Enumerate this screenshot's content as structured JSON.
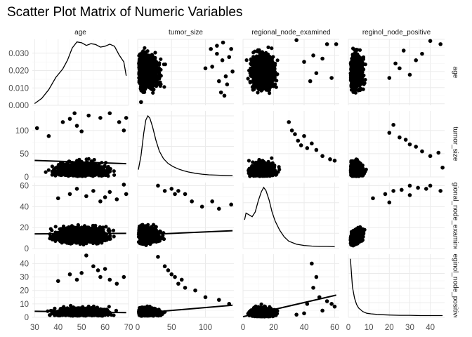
{
  "chart_data": {
    "type": "scatter_matrix",
    "title": "Scatter Plot Matrix of Numeric Variables",
    "variables": [
      "age",
      "tumor_size",
      "regional_node_examined",
      "reginol_node_positive"
    ],
    "right_strip_labels": [
      "age",
      "tumor_size",
      "regional_node_examined",
      "reginol_node_positive"
    ],
    "ranges": {
      "age": [
        29,
        70
      ],
      "tumor_size": [
        0,
        142
      ],
      "regional_node_examined": [
        0,
        63
      ],
      "reginol_node_positive": [
        0,
        47
      ]
    },
    "density_ylim": [
      0,
      0.038
    ],
    "ticks": {
      "age": [
        30,
        40,
        50,
        60,
        70
      ],
      "tumor_size": [
        0,
        50,
        100
      ],
      "regional_node_examined": [
        0,
        20,
        40,
        60
      ],
      "reginol_node_positive": [
        0,
        10,
        20,
        30,
        40
      ],
      "density": [
        0.0,
        0.01,
        0.02,
        0.03
      ]
    },
    "tick_labels": {
      "age": [
        "30",
        "40",
        "50",
        "60",
        "70"
      ],
      "tumor_size": [
        "0",
        "50",
        "100"
      ],
      "regional_node_examined": [
        "0",
        "20",
        "40",
        "60"
      ],
      "reginol_node_positive": [
        "0",
        "10",
        "20",
        "30",
        "40"
      ],
      "density": [
        "0.000",
        "0.010",
        "0.020",
        "0.030"
      ]
    },
    "densities": {
      "age": [
        [
          30,
          0.001
        ],
        [
          33,
          0.004
        ],
        [
          36,
          0.009
        ],
        [
          39,
          0.016
        ],
        [
          42,
          0.021
        ],
        [
          44,
          0.026
        ],
        [
          46,
          0.033
        ],
        [
          48,
          0.0365
        ],
        [
          50,
          0.036
        ],
        [
          52,
          0.0345
        ],
        [
          54,
          0.0355
        ],
        [
          56,
          0.035
        ],
        [
          58,
          0.0335
        ],
        [
          60,
          0.034
        ],
        [
          62,
          0.0352
        ],
        [
          64,
          0.034
        ],
        [
          66,
          0.029
        ],
        [
          68,
          0.025
        ],
        [
          69,
          0.017
        ]
      ],
      "tumor_size": [
        [
          1,
          0.12
        ],
        [
          5,
          0.35
        ],
        [
          9,
          0.72
        ],
        [
          12,
          0.93
        ],
        [
          15,
          1.0
        ],
        [
          18,
          0.96
        ],
        [
          22,
          0.82
        ],
        [
          27,
          0.6
        ],
        [
          32,
          0.42
        ],
        [
          38,
          0.3
        ],
        [
          45,
          0.22
        ],
        [
          52,
          0.17
        ],
        [
          60,
          0.13
        ],
        [
          68,
          0.1
        ],
        [
          75,
          0.08
        ],
        [
          85,
          0.06
        ],
        [
          95,
          0.045
        ],
        [
          105,
          0.035
        ],
        [
          115,
          0.03
        ],
        [
          125,
          0.025
        ],
        [
          135,
          0.02
        ],
        [
          140,
          0.02
        ]
      ],
      "regional_node_examined": [
        [
          1,
          0.47
        ],
        [
          2,
          0.58
        ],
        [
          4,
          0.55
        ],
        [
          6,
          0.52
        ],
        [
          8,
          0.6
        ],
        [
          10,
          0.78
        ],
        [
          12,
          0.93
        ],
        [
          13.5,
          1.0
        ],
        [
          15,
          0.95
        ],
        [
          17,
          0.8
        ],
        [
          19,
          0.6
        ],
        [
          21,
          0.45
        ],
        [
          24,
          0.3
        ],
        [
          27,
          0.19
        ],
        [
          30,
          0.12
        ],
        [
          35,
          0.07
        ],
        [
          40,
          0.05
        ],
        [
          45,
          0.04
        ],
        [
          50,
          0.035
        ],
        [
          55,
          0.035
        ],
        [
          60,
          0.03
        ]
      ],
      "reginol_node_positive": [
        [
          1,
          1.0
        ],
        [
          1.5,
          0.75
        ],
        [
          2,
          0.52
        ],
        [
          3,
          0.33
        ],
        [
          4,
          0.22
        ],
        [
          5,
          0.16
        ],
        [
          7,
          0.1
        ],
        [
          9,
          0.07
        ],
        [
          11,
          0.06
        ],
        [
          14,
          0.05
        ],
        [
          17,
          0.045
        ],
        [
          20,
          0.04
        ],
        [
          25,
          0.035
        ],
        [
          30,
          0.035
        ],
        [
          35,
          0.03
        ],
        [
          40,
          0.03
        ],
        [
          46,
          0.03
        ]
      ]
    },
    "fit_lines": {
      "tumor_size|age": [
        [
          30,
          35.5
        ],
        [
          69,
          28.5
        ]
      ],
      "regional_node_examined|age": [
        [
          30,
          14.0
        ],
        [
          69,
          14.5
        ]
      ],
      "reginol_node_positive|age": [
        [
          30,
          4.5
        ],
        [
          69,
          3.5
        ]
      ],
      "regional_node_examined|tumor_size": [
        [
          0,
          13.0
        ],
        [
          140,
          17.0
        ]
      ],
      "reginol_node_positive|tumor_size": [
        [
          0,
          3.0
        ],
        [
          140,
          9.0
        ]
      ],
      "reginol_node_positive|regional_node_examined": [
        [
          0,
          0.5
        ],
        [
          61,
          16.5
        ]
      ]
    },
    "outliers": {
      "age|tumor_size": [
        [
          3,
          27.5
        ],
        [
          5,
          31
        ],
        [
          7,
          45
        ],
        [
          100,
          52
        ],
        [
          108,
          64
        ],
        [
          110,
          53
        ],
        [
          117,
          66
        ],
        [
          120,
          44
        ],
        [
          123,
          37
        ],
        [
          125,
          57
        ],
        [
          128,
          35
        ],
        [
          130,
          47
        ],
        [
          132,
          42
        ],
        [
          135,
          59
        ],
        [
          138,
          64
        ],
        [
          140,
          50
        ],
        [
          126,
          68
        ],
        [
          117,
          61
        ]
      ],
      "age|regional_node_examined": [
        [
          35,
          69.5
        ],
        [
          40,
          56
        ],
        [
          44,
          44
        ],
        [
          46,
          60
        ],
        [
          48,
          49
        ],
        [
          52,
          58
        ],
        [
          55,
          67
        ],
        [
          58,
          46
        ],
        [
          61,
          67
        ]
      ],
      "age|reginol_node_positive": [
        [
          25,
          52
        ],
        [
          27,
          63
        ],
        [
          30,
          48
        ],
        [
          33,
          57
        ],
        [
          36,
          61
        ],
        [
          40,
          69
        ],
        [
          45,
          67
        ],
        [
          20,
          46
        ],
        [
          23,
          55
        ]
      ],
      "tumor_size|age": [
        [
          31,
          105
        ],
        [
          36,
          88
        ],
        [
          42,
          118
        ],
        [
          45,
          125
        ],
        [
          47,
          137
        ],
        [
          50,
          98
        ],
        [
          53,
          132
        ],
        [
          58,
          127
        ],
        [
          62,
          137
        ],
        [
          66,
          118
        ],
        [
          68,
          100
        ],
        [
          69,
          127
        ],
        [
          48,
          110
        ]
      ],
      "tumor_size|regional_node_examined": [
        [
          32,
          100
        ],
        [
          34,
          92
        ],
        [
          36,
          78
        ],
        [
          38,
          68
        ],
        [
          40,
          88
        ],
        [
          42,
          62
        ],
        [
          45,
          72
        ],
        [
          48,
          58
        ],
        [
          52,
          45
        ],
        [
          57,
          38
        ],
        [
          60,
          35
        ],
        [
          30,
          118
        ]
      ],
      "tumor_size|reginol_node_positive": [
        [
          20,
          95
        ],
        [
          22,
          112
        ],
        [
          25,
          85
        ],
        [
          28,
          80
        ],
        [
          30,
          70
        ],
        [
          33,
          65
        ],
        [
          36,
          55
        ],
        [
          40,
          45
        ],
        [
          46,
          20
        ],
        [
          44,
          52
        ]
      ],
      "regional_node_examined|age": [
        [
          40,
          48
        ],
        [
          45,
          52
        ],
        [
          48,
          57
        ],
        [
          55,
          55
        ],
        [
          60,
          49
        ],
        [
          62,
          54
        ],
        [
          65,
          47
        ],
        [
          68,
          61
        ],
        [
          69,
          52
        ],
        [
          52,
          50
        ],
        [
          58,
          45
        ]
      ],
      "regional_node_examined|tumor_size": [
        [
          50,
          57
        ],
        [
          55,
          52
        ],
        [
          60,
          55
        ],
        [
          70,
          52
        ],
        [
          80,
          45
        ],
        [
          95,
          40
        ],
        [
          110,
          45
        ],
        [
          120,
          38
        ],
        [
          138,
          42
        ],
        [
          30,
          60
        ],
        [
          40,
          55
        ]
      ],
      "regional_node_examined|reginol_node_positive": [
        [
          12,
          48
        ],
        [
          18,
          52
        ],
        [
          22,
          55
        ],
        [
          26,
          56
        ],
        [
          30,
          60
        ],
        [
          34,
          58
        ],
        [
          38,
          57
        ],
        [
          45,
          55
        ],
        [
          30,
          51
        ],
        [
          20,
          44
        ],
        [
          40,
          60
        ]
      ],
      "reginol_node_positive|age": [
        [
          40,
          27
        ],
        [
          45,
          32
        ],
        [
          48,
          28
        ],
        [
          52,
          46
        ],
        [
          55,
          38
        ],
        [
          58,
          30
        ],
        [
          60,
          36
        ],
        [
          62,
          28
        ],
        [
          65,
          25
        ],
        [
          68,
          30
        ],
        [
          50,
          33
        ],
        [
          57,
          35
        ]
      ],
      "reginol_node_positive|tumor_size": [
        [
          30,
          45
        ],
        [
          40,
          38
        ],
        [
          50,
          32
        ],
        [
          55,
          30
        ],
        [
          60,
          25
        ],
        [
          70,
          22
        ],
        [
          85,
          20
        ],
        [
          100,
          15
        ],
        [
          120,
          13
        ],
        [
          135,
          10
        ],
        [
          45,
          35
        ],
        [
          65,
          28
        ]
      ],
      "reginol_node_positive|regional_node_examined": [
        [
          45,
          40
        ],
        [
          50,
          15
        ],
        [
          55,
          12
        ],
        [
          58,
          10
        ],
        [
          60,
          8
        ],
        [
          40,
          3
        ],
        [
          46,
          22
        ],
        [
          52,
          5
        ],
        [
          48,
          30
        ],
        [
          35,
          2
        ],
        [
          42,
          10
        ]
      ]
    }
  }
}
